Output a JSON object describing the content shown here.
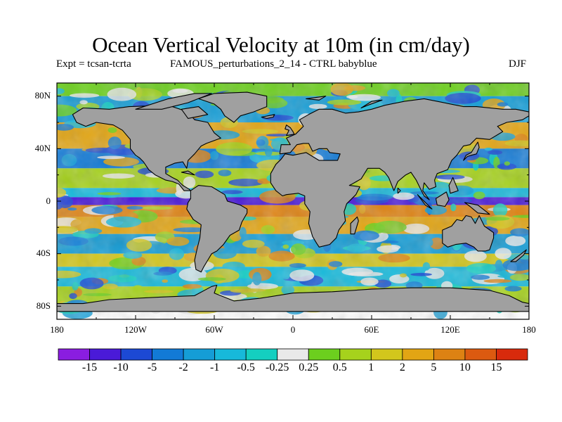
{
  "title": "Ocean Vertical Velocity at 10m (in cm/day)",
  "subtitle_left": "Expt = tcsan-tcrta",
  "subtitle_center": "FAMOUS_perturbations_2_14 - CTRL babyblue",
  "subtitle_right": "DJF",
  "latitude_labels": [
    "80N",
    "40N",
    "0",
    "40S",
    "80S"
  ],
  "longitude_labels": [
    "180",
    "120W",
    "60W",
    "0",
    "60E",
    "120E",
    "180"
  ],
  "land_color": "#a0a0a0",
  "colorbar": {
    "labels": [
      "-15",
      "-10",
      "-5",
      "-2",
      "-1",
      "-0.5",
      "-0.25",
      "0.25",
      "0.5",
      "1",
      "2",
      "5",
      "10",
      "15"
    ],
    "colors": [
      "#8a1de0",
      "#4a1ad8",
      "#1c49d4",
      "#127ad6",
      "#159dd6",
      "#17b9da",
      "#14cfc0",
      "#e9e9e9",
      "#6ccf1e",
      "#a6d21c",
      "#d2c61c",
      "#e2a514",
      "#dd8213",
      "#dc5a10",
      "#d82a0c"
    ]
  },
  "map_data": {
    "type": "filled-contour",
    "variable": "Ocean Vertical Velocity at 10m",
    "units": "cm/day",
    "season": "DJF",
    "lon_range": [
      -180,
      180
    ],
    "lat_range": [
      -90,
      90
    ],
    "bands": [
      {
        "lat": [
          80,
          90
        ],
        "level": 8
      },
      {
        "lat": [
          60,
          80
        ],
        "level": 4
      },
      {
        "lat": [
          40,
          60
        ],
        "level": 11
      },
      {
        "lat": [
          25,
          40
        ],
        "level": 3
      },
      {
        "lat": [
          10,
          25
        ],
        "level": 9
      },
      {
        "lat": [
          3,
          10
        ],
        "level": 5
      },
      {
        "lat": [
          -3,
          3
        ],
        "level": 1
      },
      {
        "lat": [
          -12,
          -3
        ],
        "level": 12
      },
      {
        "lat": [
          -25,
          -12
        ],
        "level": 11
      },
      {
        "lat": [
          -40,
          -25
        ],
        "level": 4
      },
      {
        "lat": [
          -50,
          -40
        ],
        "level": 10
      },
      {
        "lat": [
          -65,
          -50
        ],
        "level": 5
      },
      {
        "lat": [
          -78,
          -65
        ],
        "level": 9
      }
    ]
  }
}
